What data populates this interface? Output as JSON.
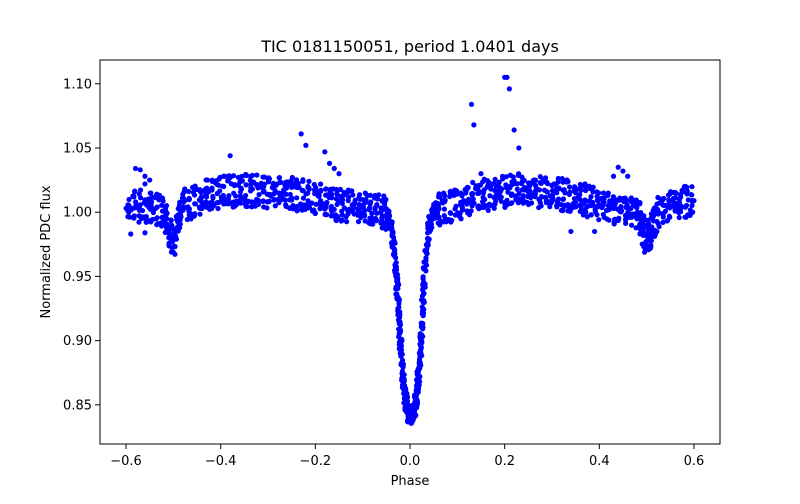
{
  "chart_data": {
    "type": "scatter",
    "title": "TIC 0181150051, period 1.0401 days",
    "xlabel": "Phase",
    "ylabel": "Normalized PDC flux",
    "xlim": [
      -0.655,
      0.655
    ],
    "ylim": [
      0.8195,
      1.1185
    ],
    "xticks": [
      -0.6,
      -0.4,
      -0.2,
      0.0,
      0.2,
      0.4,
      0.6
    ],
    "xtick_labels": [
      "−0.6",
      "−0.4",
      "−0.2",
      "0.0",
      "0.2",
      "0.4",
      "0.6"
    ],
    "yticks": [
      0.85,
      0.9,
      0.95,
      1.0,
      1.05,
      1.1
    ],
    "ytick_labels": [
      "0.85",
      "0.90",
      "0.95",
      "1.00",
      "1.05",
      "1.10"
    ],
    "grid": false,
    "legend": "none",
    "marker_color": "#0000ff",
    "series": [
      {
        "name": "PDC flux",
        "x": [
          -0.6,
          -0.58,
          -0.56,
          -0.54,
          -0.52,
          -0.51,
          -0.5,
          -0.49,
          -0.48,
          -0.46,
          -0.44,
          -0.42,
          -0.4,
          -0.38,
          -0.36,
          -0.34,
          -0.32,
          -0.3,
          -0.28,
          -0.26,
          -0.24,
          -0.22,
          -0.2,
          -0.18,
          -0.16,
          -0.14,
          -0.12,
          -0.1,
          -0.08,
          -0.06,
          -0.05,
          -0.04,
          -0.03,
          -0.025,
          -0.02,
          -0.015,
          -0.01,
          -0.005,
          0.0,
          0.005,
          0.01,
          0.015,
          0.02,
          0.025,
          0.03,
          0.04,
          0.05,
          0.06,
          0.08,
          0.1,
          0.12,
          0.14,
          0.16,
          0.18,
          0.2,
          0.22,
          0.24,
          0.26,
          0.28,
          0.3,
          0.32,
          0.34,
          0.36,
          0.38,
          0.4,
          0.42,
          0.44,
          0.46,
          0.48,
          0.49,
          0.5,
          0.51,
          0.52,
          0.54,
          0.56,
          0.58,
          0.6
        ],
        "y": [
          1.003,
          1.004,
          1.005,
          1.003,
          0.998,
          0.985,
          0.978,
          0.99,
          1.004,
          1.008,
          1.012,
          1.014,
          1.015,
          1.016,
          1.017,
          1.017,
          1.016,
          1.016,
          1.016,
          1.015,
          1.014,
          1.013,
          1.011,
          1.009,
          1.007,
          1.005,
          1.004,
          1.003,
          1.002,
          1.001,
          0.998,
          0.99,
          0.96,
          0.93,
          0.9,
          0.87,
          0.855,
          0.845,
          0.84,
          0.842,
          0.848,
          0.86,
          0.88,
          0.91,
          0.95,
          0.99,
          1.0,
          1.002,
          1.004,
          1.006,
          1.009,
          1.012,
          1.014,
          1.015,
          1.016,
          1.017,
          1.017,
          1.017,
          1.016,
          1.015,
          1.014,
          1.012,
          1.01,
          1.008,
          1.006,
          1.004,
          1.003,
          1.002,
          1.0,
          0.99,
          0.978,
          0.985,
          0.998,
          1.004,
          1.006,
          1.008,
          1.009
        ]
      }
    ],
    "outliers": {
      "x": [
        -0.58,
        -0.57,
        -0.56,
        -0.55,
        -0.56,
        -0.38,
        -0.23,
        -0.22,
        -0.18,
        -0.17,
        -0.16,
        -0.15,
        0.13,
        0.135,
        0.15,
        0.2,
        0.205,
        0.21,
        0.22,
        0.23,
        0.44,
        0.45,
        0.46,
        0.43,
        0.34,
        0.39,
        -0.59,
        -0.56
      ],
      "y": [
        1.034,
        1.033,
        1.028,
        1.025,
        1.022,
        1.044,
        1.061,
        1.052,
        1.047,
        1.038,
        1.034,
        1.03,
        1.084,
        1.068,
        1.03,
        1.105,
        1.105,
        1.096,
        1.064,
        1.05,
        1.035,
        1.032,
        1.028,
        1.028,
        0.985,
        0.985,
        0.983,
        0.984
      ]
    }
  }
}
